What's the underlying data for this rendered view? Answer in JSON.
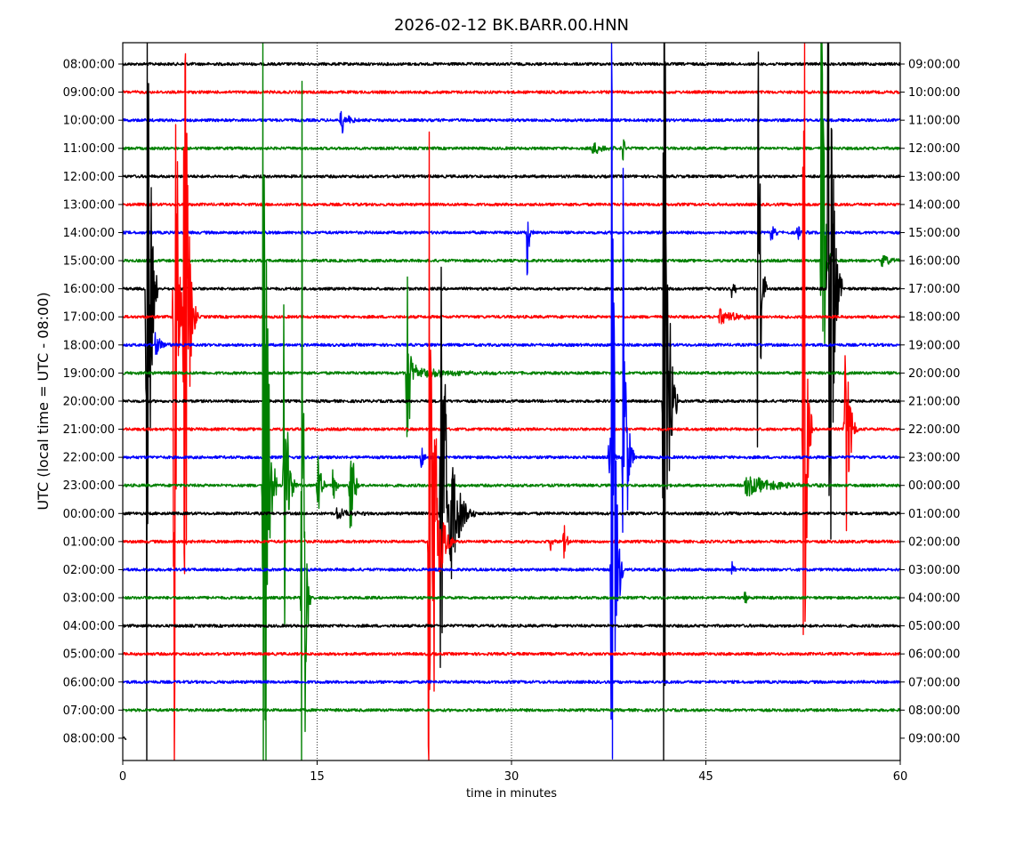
{
  "chart_data": {
    "type": "line",
    "title": "2026-02-12 BK.BARR.00.HNN",
    "xlabel": "time in minutes",
    "ylabel": "UTC (local time = UTC - 08:00)",
    "xlim": [
      0,
      60
    ],
    "x_ticks": [
      "0",
      "15",
      "30",
      "45",
      "60"
    ],
    "x_tick_values": [
      0,
      15,
      30,
      45,
      60
    ],
    "grid": "vertical dotted at 15, 30, 45",
    "colors": [
      "#000000",
      "#ff0000",
      "#0000ff",
      "#008000"
    ],
    "rows": [
      {
        "left": "08:00:00",
        "right": "09:00:00"
      },
      {
        "left": "09:00:00",
        "right": "10:00:00"
      },
      {
        "left": "10:00:00",
        "right": "11:00:00"
      },
      {
        "left": "11:00:00",
        "right": "12:00:00"
      },
      {
        "left": "12:00:00",
        "right": "13:00:00"
      },
      {
        "left": "13:00:00",
        "right": "14:00:00"
      },
      {
        "left": "14:00:00",
        "right": "15:00:00"
      },
      {
        "left": "15:00:00",
        "right": "16:00:00"
      },
      {
        "left": "16:00:00",
        "right": "17:00:00"
      },
      {
        "left": "17:00:00",
        "right": "18:00:00"
      },
      {
        "left": "18:00:00",
        "right": "19:00:00"
      },
      {
        "left": "19:00:00",
        "right": "20:00:00"
      },
      {
        "left": "20:00:00",
        "right": "21:00:00"
      },
      {
        "left": "21:00:00",
        "right": "22:00:00"
      },
      {
        "left": "22:00:00",
        "right": "23:00:00"
      },
      {
        "left": "23:00:00",
        "right": "00:00:00"
      },
      {
        "left": "00:00:00",
        "right": "01:00:00"
      },
      {
        "left": "01:00:00",
        "right": "02:00:00"
      },
      {
        "left": "02:00:00",
        "right": "03:00:00"
      },
      {
        "left": "03:00:00",
        "right": "04:00:00"
      },
      {
        "left": "04:00:00",
        "right": "05:00:00"
      },
      {
        "left": "05:00:00",
        "right": "06:00:00"
      },
      {
        "left": "06:00:00",
        "right": "07:00:00"
      },
      {
        "left": "07:00:00",
        "right": "08:00:00"
      },
      {
        "left": "08:00:00",
        "right": "09:00:00",
        "end_minute": 0.3
      }
    ],
    "events": [
      {
        "row": 2,
        "minute": 16.8,
        "amplitude": 0.7,
        "duration": 1.0
      },
      {
        "row": 3,
        "minute": 36.2,
        "amplitude": 0.25,
        "duration": 2.0
      },
      {
        "row": 3,
        "minute": 38.6,
        "amplitude": 1.0,
        "duration": 0.2
      },
      {
        "row": 6,
        "minute": 31.2,
        "amplitude": 2.0,
        "duration": 0.3
      },
      {
        "row": 6,
        "minute": 50.0,
        "amplitude": 0.4,
        "duration": 0.6
      },
      {
        "row": 6,
        "minute": 52.0,
        "amplitude": 0.4,
        "duration": 0.6
      },
      {
        "row": 7,
        "minute": 53.9,
        "amplitude": 20,
        "duration": 0.4
      },
      {
        "row": 7,
        "minute": 58.5,
        "amplitude": 0.3,
        "duration": 1.5
      },
      {
        "row": 8,
        "minute": 1.8,
        "amplitude": 30,
        "duration": 0.5
      },
      {
        "row": 8,
        "minute": 47.0,
        "amplitude": 0.5,
        "duration": 0.5
      },
      {
        "row": 8,
        "minute": 49.0,
        "amplitude": 15,
        "duration": 0.4
      },
      {
        "row": 8,
        "minute": 54.4,
        "amplitude": 30,
        "duration": 0.6
      },
      {
        "row": 9,
        "minute": 3.9,
        "amplitude": 30,
        "duration": 0.5
      },
      {
        "row": 9,
        "minute": 4.7,
        "amplitude": 20,
        "duration": 0.6
      },
      {
        "row": 9,
        "minute": 46.0,
        "amplitude": 0.3,
        "duration": 3.0
      },
      {
        "row": 10,
        "minute": 2.5,
        "amplitude": 0.5,
        "duration": 1.0
      },
      {
        "row": 11,
        "minute": 21.9,
        "amplitude": 8,
        "duration": 0.4
      },
      {
        "row": 11,
        "minute": 22.5,
        "amplitude": 0.2,
        "duration": 8.0
      },
      {
        "row": 12,
        "minute": 41.7,
        "amplitude": 30,
        "duration": 0.6
      },
      {
        "row": 13,
        "minute": 52.5,
        "amplitude": 30,
        "duration": 0.4
      },
      {
        "row": 13,
        "minute": 55.7,
        "amplitude": 7,
        "duration": 0.6
      },
      {
        "row": 14,
        "minute": 23.0,
        "amplitude": 0.5,
        "duration": 0.5
      },
      {
        "row": 14,
        "minute": 37.5,
        "amplitude": 1.2,
        "duration": 0.5
      },
      {
        "row": 14,
        "minute": 38.6,
        "amplitude": 12,
        "duration": 0.5
      },
      {
        "row": 15,
        "minute": 10.8,
        "amplitude": 30,
        "duration": 0.6
      },
      {
        "row": 15,
        "minute": 12.4,
        "amplitude": 8,
        "duration": 0.6
      },
      {
        "row": 15,
        "minute": 15.0,
        "amplitude": 2,
        "duration": 0.5
      },
      {
        "row": 15,
        "minute": 16.2,
        "amplitude": 1,
        "duration": 0.4
      },
      {
        "row": 15,
        "minute": 17.5,
        "amplitude": 5,
        "duration": 0.5
      },
      {
        "row": 15,
        "minute": 48.0,
        "amplitude": 0.4,
        "duration": 5.0
      },
      {
        "row": 16,
        "minute": 24.5,
        "amplitude": 10,
        "duration": 1.5
      },
      {
        "row": 16,
        "minute": 16.5,
        "amplitude": 0.3,
        "duration": 2.0
      },
      {
        "row": 17,
        "minute": 23.6,
        "amplitude": 20,
        "duration": 0.6
      },
      {
        "row": 17,
        "minute": 24.0,
        "amplitude": 5,
        "duration": 1.0
      },
      {
        "row": 17,
        "minute": 33.0,
        "amplitude": 0.6,
        "duration": 0.4
      },
      {
        "row": 17,
        "minute": 34.0,
        "amplitude": 0.8,
        "duration": 0.5
      },
      {
        "row": 18,
        "minute": 37.7,
        "amplitude": 30,
        "duration": 0.5
      },
      {
        "row": 18,
        "minute": 47.0,
        "amplitude": 0.4,
        "duration": 0.4
      },
      {
        "row": 19,
        "minute": 13.8,
        "amplitude": 30,
        "duration": 0.4
      },
      {
        "row": 19,
        "minute": 48.0,
        "amplitude": 0.5,
        "duration": 0.3
      }
    ]
  }
}
